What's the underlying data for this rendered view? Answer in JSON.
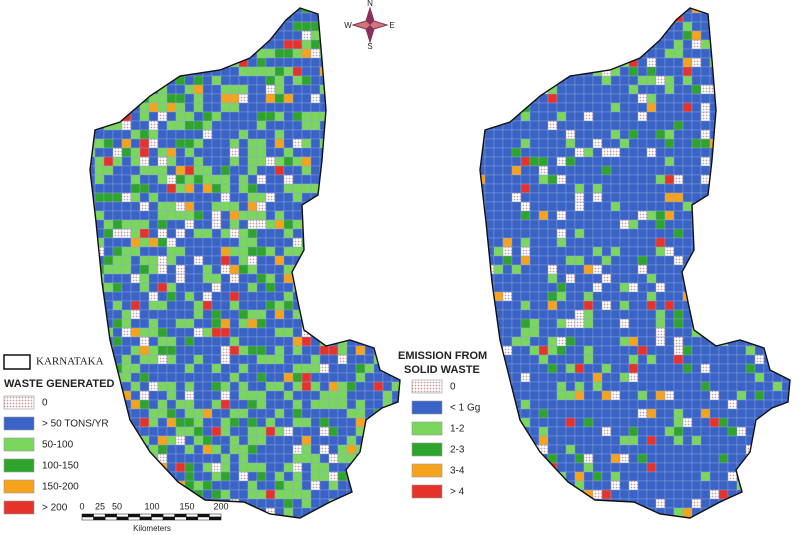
{
  "compass": {
    "north": "N",
    "east": "E",
    "south": "S",
    "west": "W"
  },
  "left_legend": {
    "boundary_label": "KARNATAKA",
    "title": "WASTE GENERATED",
    "items": [
      {
        "label": "0",
        "color": "#ead3d3"
      },
      {
        "label": "> 50 TONS/YR",
        "color": "#3a63c6"
      },
      {
        "label": "50-100",
        "color": "#7bd65c"
      },
      {
        "label": "100-150",
        "color": "#2ea42c"
      },
      {
        "label": "150-200",
        "color": "#f6a31c"
      },
      {
        "label": "> 200",
        "color": "#e5322b"
      }
    ]
  },
  "scale_bar": {
    "labels": [
      "0",
      "25",
      "50",
      "100",
      "150",
      "200"
    ],
    "unit": "Kilometers"
  },
  "right_legend": {
    "title_lines": [
      "EMISSION FROM",
      "SOLID WASTE"
    ],
    "items": [
      {
        "label": "0",
        "color": "#ead3d3"
      },
      {
        "label": "< 1 Gg",
        "color": "#3a63c6"
      },
      {
        "label": "1-2",
        "color": "#7bd65c"
      },
      {
        "label": "2-3",
        "color": "#2ea42c"
      },
      {
        "label": "3-4",
        "color": "#f6a31c"
      },
      {
        "label": "> 4",
        "color": "#e5322b"
      }
    ]
  }
}
